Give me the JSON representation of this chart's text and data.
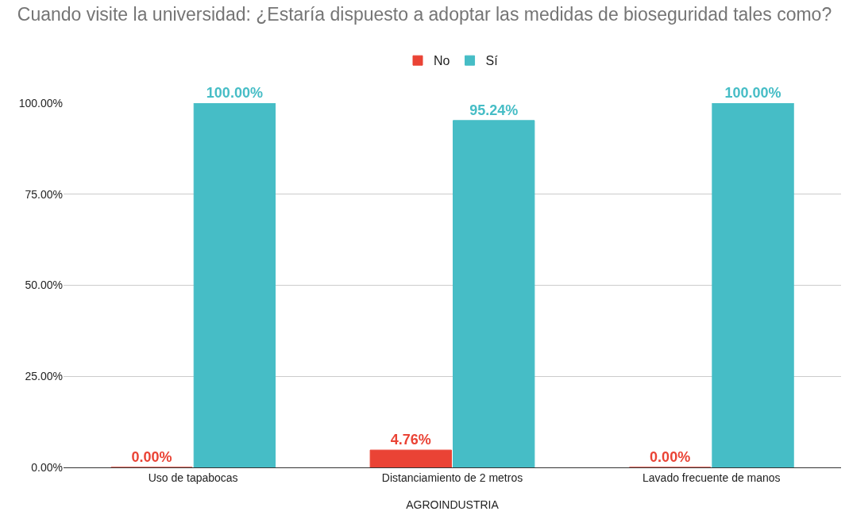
{
  "chart_data": {
    "type": "bar",
    "title": "Cuando visite la universidad: ¿Estaría dispuesto a adoptar las medidas de bioseguridad tales como?",
    "xlabel": "AGROINDUSTRIA",
    "categories": [
      "Uso de tapabocas",
      "Distanciamiento de 2 metros",
      "Lavado frecuente de manos"
    ],
    "series": [
      {
        "name": "No",
        "color": "#ea4335",
        "values": [
          0,
          4.76,
          0
        ],
        "value_labels": [
          "0.00%",
          "4.76%",
          "0.00%"
        ]
      },
      {
        "name": "Sí",
        "color": "#46bdc6",
        "values": [
          100,
          95.24,
          100
        ],
        "value_labels": [
          "100.00%",
          "95.24%",
          "100.00%"
        ]
      }
    ],
    "ylim": [
      0,
      100
    ],
    "yticks": [
      {
        "value": 0,
        "label": "0.00%"
      },
      {
        "value": 25,
        "label": "25.00%"
      },
      {
        "value": 50,
        "label": "50.00%"
      },
      {
        "value": 75,
        "label": "75.00%"
      },
      {
        "value": 100,
        "label": "100.00%"
      }
    ],
    "grid": "y",
    "legend": "top"
  }
}
